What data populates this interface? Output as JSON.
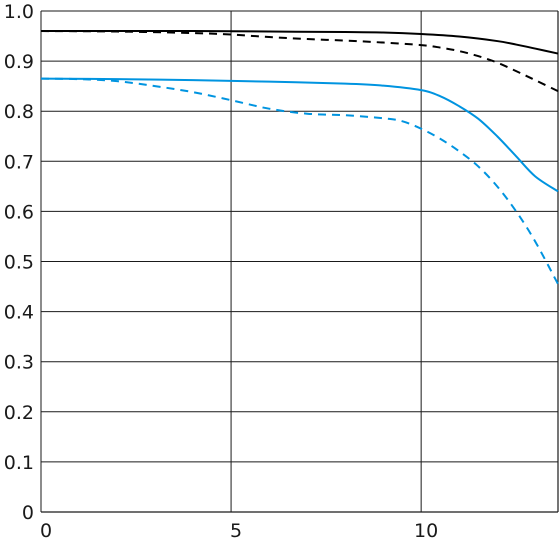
{
  "chart_data": {
    "type": "line",
    "title": "",
    "xlabel": "",
    "ylabel": "",
    "xlim": [
      0,
      13.6
    ],
    "ylim": [
      0,
      1.0
    ],
    "x_ticks": [
      0,
      5,
      10
    ],
    "x_tick_labels": [
      "0",
      "5",
      "10"
    ],
    "y_ticks": [
      0,
      0.1,
      0.2,
      0.3,
      0.4,
      0.5,
      0.6,
      0.7,
      0.8,
      0.9,
      1.0
    ],
    "y_tick_labels": [
      "0",
      "0.1",
      "0.2",
      "0.3",
      "0.4",
      "0.5",
      "0.6",
      "0.7",
      "0.8",
      "0.9",
      "1.0"
    ],
    "grid": true,
    "legend": "none",
    "series": [
      {
        "color": "#000000",
        "dash": "solid",
        "x": [
          0,
          2,
          4,
          6,
          8,
          9,
          10,
          11,
          12,
          12.5,
          13,
          13.6
        ],
        "y": [
          0.96,
          0.96,
          0.96,
          0.959,
          0.958,
          0.957,
          0.954,
          0.949,
          0.94,
          0.933,
          0.925,
          0.915
        ]
      },
      {
        "color": "#000000",
        "dash": "dashed",
        "x": [
          0,
          2,
          4,
          5,
          6,
          7,
          8,
          9,
          10,
          10.5,
          11,
          11.5,
          12,
          12.5,
          13,
          13.6
        ],
        "y": [
          0.96,
          0.959,
          0.956,
          0.953,
          0.948,
          0.944,
          0.941,
          0.937,
          0.932,
          0.927,
          0.92,
          0.91,
          0.897,
          0.88,
          0.862,
          0.84
        ]
      },
      {
        "color": "#0094e0",
        "dash": "solid",
        "x": [
          0,
          2,
          4,
          6,
          8,
          9,
          10,
          10.5,
          11,
          11.5,
          12,
          12.5,
          13,
          13.6
        ],
        "y": [
          0.865,
          0.864,
          0.862,
          0.859,
          0.855,
          0.851,
          0.842,
          0.83,
          0.81,
          0.785,
          0.75,
          0.71,
          0.67,
          0.64
        ]
      },
      {
        "color": "#0094e0",
        "dash": "dashed",
        "x": [
          0,
          1,
          2,
          3,
          4,
          5,
          6,
          7,
          8,
          9,
          9.5,
          10,
          10.5,
          11,
          11.5,
          12,
          12.5,
          13,
          13.6
        ],
        "y": [
          0.865,
          0.864,
          0.86,
          0.85,
          0.838,
          0.822,
          0.805,
          0.795,
          0.792,
          0.786,
          0.78,
          0.765,
          0.745,
          0.72,
          0.69,
          0.65,
          0.6,
          0.54,
          0.455
        ]
      }
    ]
  }
}
